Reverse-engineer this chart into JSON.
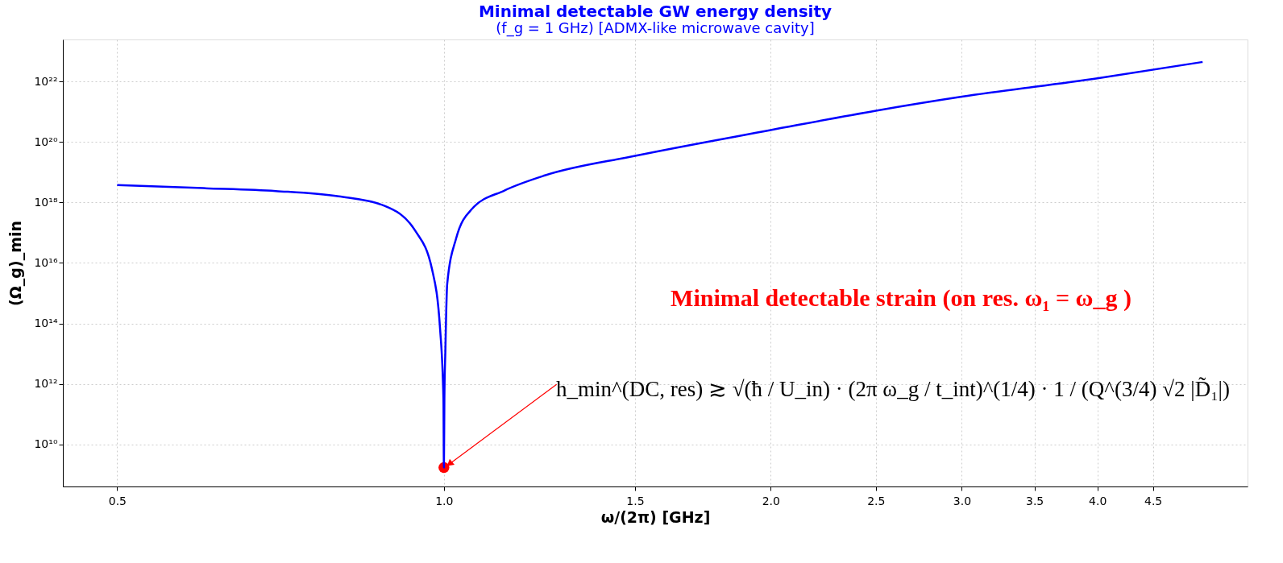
{
  "chart_data": {
    "type": "line",
    "title": "Minimal detectable GW energy density",
    "subtitle": "(f_g = 1 GHz)   [ADMX-like microwave cavity]",
    "xlabel": "ω/(2π) [GHz]",
    "ylabel": "(Ω_g)_min",
    "log": "xy",
    "grid": true,
    "xlim": [
      0.4456,
      5.5
    ],
    "ylim": [
      400000000.0,
      2.5e+23
    ],
    "xticks": [
      0.5,
      {
        "value": 1,
        "label": "1.0"
      },
      1.5,
      {
        "value": 2,
        "label": "2.0"
      },
      2.5,
      {
        "value": 3,
        "label": "3.0"
      },
      3.5,
      {
        "value": 4,
        "label": "4.0"
      },
      4.5
    ],
    "yticks": [
      {
        "value": 10000000000.0,
        "label": "10¹⁰"
      },
      {
        "value": 1000000000000.0,
        "label": "10¹²"
      },
      {
        "value": 100000000000000.0,
        "label": "10¹⁴"
      },
      {
        "value": 1e+16,
        "label": "10¹⁶"
      },
      {
        "value": 1e+18,
        "label": "10¹⁸"
      },
      {
        "value": 1e+20,
        "label": "10²⁰"
      },
      {
        "value": 1e+22,
        "label": "10²²"
      }
    ],
    "series": [
      {
        "color": "#0000ff",
        "line_style": "solid",
        "x": [
          0.5,
          0.6,
          0.7,
          0.8,
          0.88,
          0.942,
          0.975,
          0.992,
          0.999,
          1.0,
          1.001,
          1.003,
          1.007,
          1.026,
          1.062,
          1.137,
          1.239,
          1.5,
          2.0,
          2.5,
          3.0,
          4.0,
          5.0
        ],
        "values": [
          3.8e+18,
          3e+18,
          2.4e+18,
          1.6e+18,
          8e+17,
          1.1e+17,
          6300000000000000.0,
          63000000000000.0,
          320000000000.0,
          1700000000.0,
          320000000000.0,
          11000000000000.0,
          2000000000000000.0,
          6.3e+16,
          6.3e+17,
          2.5e+18,
          7.9e+18,
          3.5e+19,
          2.5e+20,
          1.1e+21,
          3.2e+21,
          1.3e+22,
          4.5e+22
        ]
      },
      {
        "type": "scatter",
        "color": "#ff0000",
        "marker": "circle",
        "x": [
          1.0
        ],
        "values": [
          1700000000.0
        ]
      }
    ],
    "annotations": [
      "Minimal detectable strain (on res. ω₁ = ω_g )",
      {
        "text": "h_min^(DC, res) ≳ √(ħ / U_in) · (2π ω_g / t_int)^(1/4) · 1 / (Q^(3/4) √2 |D̃₁|)",
        "x": 1.0,
        "y": 1700000000.0
      }
    ]
  }
}
